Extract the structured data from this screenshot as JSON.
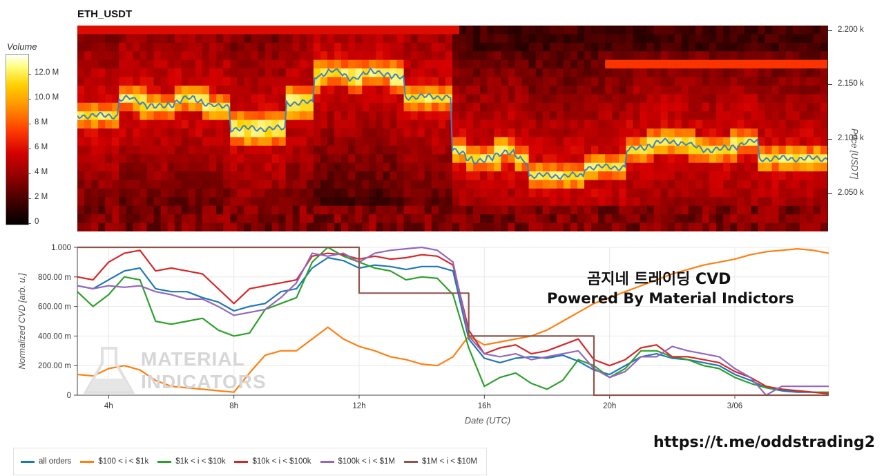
{
  "heatmap": {
    "title": "ETH_USDT",
    "colorbar_title": "Volume",
    "colorbar_ticks": [
      "12.0 M",
      "10.0 M",
      "8 M",
      "6 M",
      "4 M",
      "2 M",
      "0"
    ],
    "price_ticks": [
      "2.200 k",
      "2.150 k",
      "2.100 k",
      "2.050 k"
    ],
    "price_axis_label": "Price [USDT]"
  },
  "chart_data": {
    "type": "line",
    "title": "",
    "xlabel": "Date (UTC)",
    "ylabel": "Normalized CVD [arb. u.]",
    "x_ticks": [
      "4h",
      "8h",
      "12h",
      "16h",
      "20h",
      "3/06"
    ],
    "y_ticks": [
      "1.000",
      "800.00 m",
      "600.00 m",
      "400.00 m",
      "200.00 m",
      "0"
    ],
    "ylim": [
      0,
      1
    ],
    "x_hours": [
      3,
      3.5,
      4,
      4.5,
      5,
      5.5,
      6,
      6.5,
      7,
      7.5,
      8,
      8.5,
      9,
      9.5,
      10,
      10.5,
      11,
      11.5,
      12,
      12.5,
      13,
      13.5,
      14,
      14.5,
      15,
      15.5,
      16,
      16.5,
      17,
      17.5,
      18,
      18.5,
      19,
      19.5,
      20,
      20.5,
      21,
      21.5,
      22,
      22.5,
      23,
      23.5,
      24,
      24.5,
      25,
      25.5,
      26,
      26.5,
      27
    ],
    "series": [
      {
        "name": "all orders",
        "color": "#1f77b4",
        "values": [
          0.74,
          0.72,
          0.78,
          0.84,
          0.86,
          0.72,
          0.7,
          0.7,
          0.66,
          0.63,
          0.57,
          0.6,
          0.62,
          0.7,
          0.72,
          0.86,
          0.93,
          0.91,
          0.86,
          0.88,
          0.87,
          0.85,
          0.87,
          0.87,
          0.84,
          0.38,
          0.25,
          0.22,
          0.25,
          0.26,
          0.25,
          0.27,
          0.23,
          0.17,
          0.14,
          0.2,
          0.26,
          0.28,
          0.25,
          0.24,
          0.22,
          0.2,
          0.14,
          0.1,
          0.05,
          0.03,
          0.02,
          0.02,
          0.01
        ]
      },
      {
        "name": "$100 < i < $1k",
        "color": "#ff7f0e",
        "values": [
          0.14,
          0.13,
          0.18,
          0.2,
          0.17,
          0.1,
          0.06,
          0.05,
          0.04,
          0.03,
          0.02,
          0.15,
          0.27,
          0.3,
          0.3,
          0.38,
          0.46,
          0.38,
          0.33,
          0.3,
          0.26,
          0.24,
          0.21,
          0.2,
          0.26,
          0.4,
          0.34,
          0.36,
          0.38,
          0.4,
          0.44,
          0.5,
          0.56,
          0.62,
          0.66,
          0.7,
          0.74,
          0.78,
          0.82,
          0.85,
          0.88,
          0.9,
          0.92,
          0.95,
          0.97,
          0.98,
          0.99,
          0.98,
          0.96
        ]
      },
      {
        "name": "$1k < i < $10k",
        "color": "#2ca02c",
        "values": [
          0.7,
          0.6,
          0.68,
          0.8,
          0.78,
          0.5,
          0.48,
          0.5,
          0.52,
          0.44,
          0.4,
          0.42,
          0.58,
          0.62,
          0.66,
          0.9,
          1.0,
          0.94,
          0.9,
          0.86,
          0.84,
          0.78,
          0.8,
          0.79,
          0.68,
          0.32,
          0.06,
          0.12,
          0.15,
          0.08,
          0.04,
          0.1,
          0.24,
          0.2,
          0.12,
          0.18,
          0.3,
          0.3,
          0.26,
          0.24,
          0.2,
          0.18,
          0.12,
          0.08,
          0.05,
          0.04,
          0.03,
          0.02,
          0.02
        ]
      },
      {
        "name": "$10k < i < $100k",
        "color": "#d62728",
        "values": [
          0.8,
          0.78,
          0.9,
          0.96,
          0.98,
          0.84,
          0.86,
          0.84,
          0.82,
          0.72,
          0.62,
          0.72,
          0.74,
          0.76,
          0.78,
          0.94,
          0.96,
          0.95,
          0.92,
          0.94,
          0.92,
          0.93,
          0.95,
          0.94,
          0.88,
          0.44,
          0.28,
          0.32,
          0.34,
          0.28,
          0.3,
          0.34,
          0.38,
          0.24,
          0.2,
          0.24,
          0.32,
          0.34,
          0.26,
          0.26,
          0.24,
          0.22,
          0.16,
          0.12,
          0.06,
          0.04,
          0.03,
          0.02,
          0.01
        ]
      },
      {
        "name": "$100k < i < $1M",
        "color": "#9467bd",
        "values": [
          0.74,
          0.72,
          0.74,
          0.73,
          0.74,
          0.7,
          0.68,
          0.65,
          0.65,
          0.6,
          0.54,
          0.56,
          0.58,
          0.66,
          0.76,
          0.96,
          0.94,
          0.96,
          0.9,
          0.96,
          0.98,
          0.99,
          1.0,
          0.98,
          0.9,
          0.4,
          0.28,
          0.26,
          0.28,
          0.24,
          0.26,
          0.28,
          0.3,
          0.18,
          0.12,
          0.16,
          0.26,
          0.26,
          0.33,
          0.3,
          0.28,
          0.26,
          0.18,
          0.12,
          0.0,
          0.06,
          0.06,
          0.06,
          0.06
        ]
      },
      {
        "name": "$1M < i < $10M",
        "color": "#8c564b",
        "values": [
          1.0,
          1.0,
          1.0,
          1.0,
          1.0,
          1.0,
          1.0,
          1.0,
          1.0,
          1.0,
          1.0,
          1.0,
          1.0,
          1.0,
          1.0,
          1.0,
          1.0,
          1.0,
          0.69,
          0.69,
          0.69,
          0.69,
          0.69,
          0.69,
          0.69,
          0.4,
          0.4,
          0.4,
          0.4,
          0.4,
          0.4,
          0.4,
          0.4,
          0.0,
          0.0,
          0.0,
          0.0,
          0.0,
          0.0,
          0.0,
          0.0,
          0.0,
          0.0,
          0.0,
          0.0,
          0.0,
          0.0,
          0.0,
          0.0
        ]
      }
    ],
    "price_series_color": "#3b82c4"
  },
  "overlay": {
    "line1": "곰지네 트레이딩 CVD",
    "line2": "Powered By Material Indictors",
    "url": "https://t.me/oddstrading2"
  },
  "watermark": {
    "line1": "MATERIAL",
    "line2": "INDICATORS"
  }
}
